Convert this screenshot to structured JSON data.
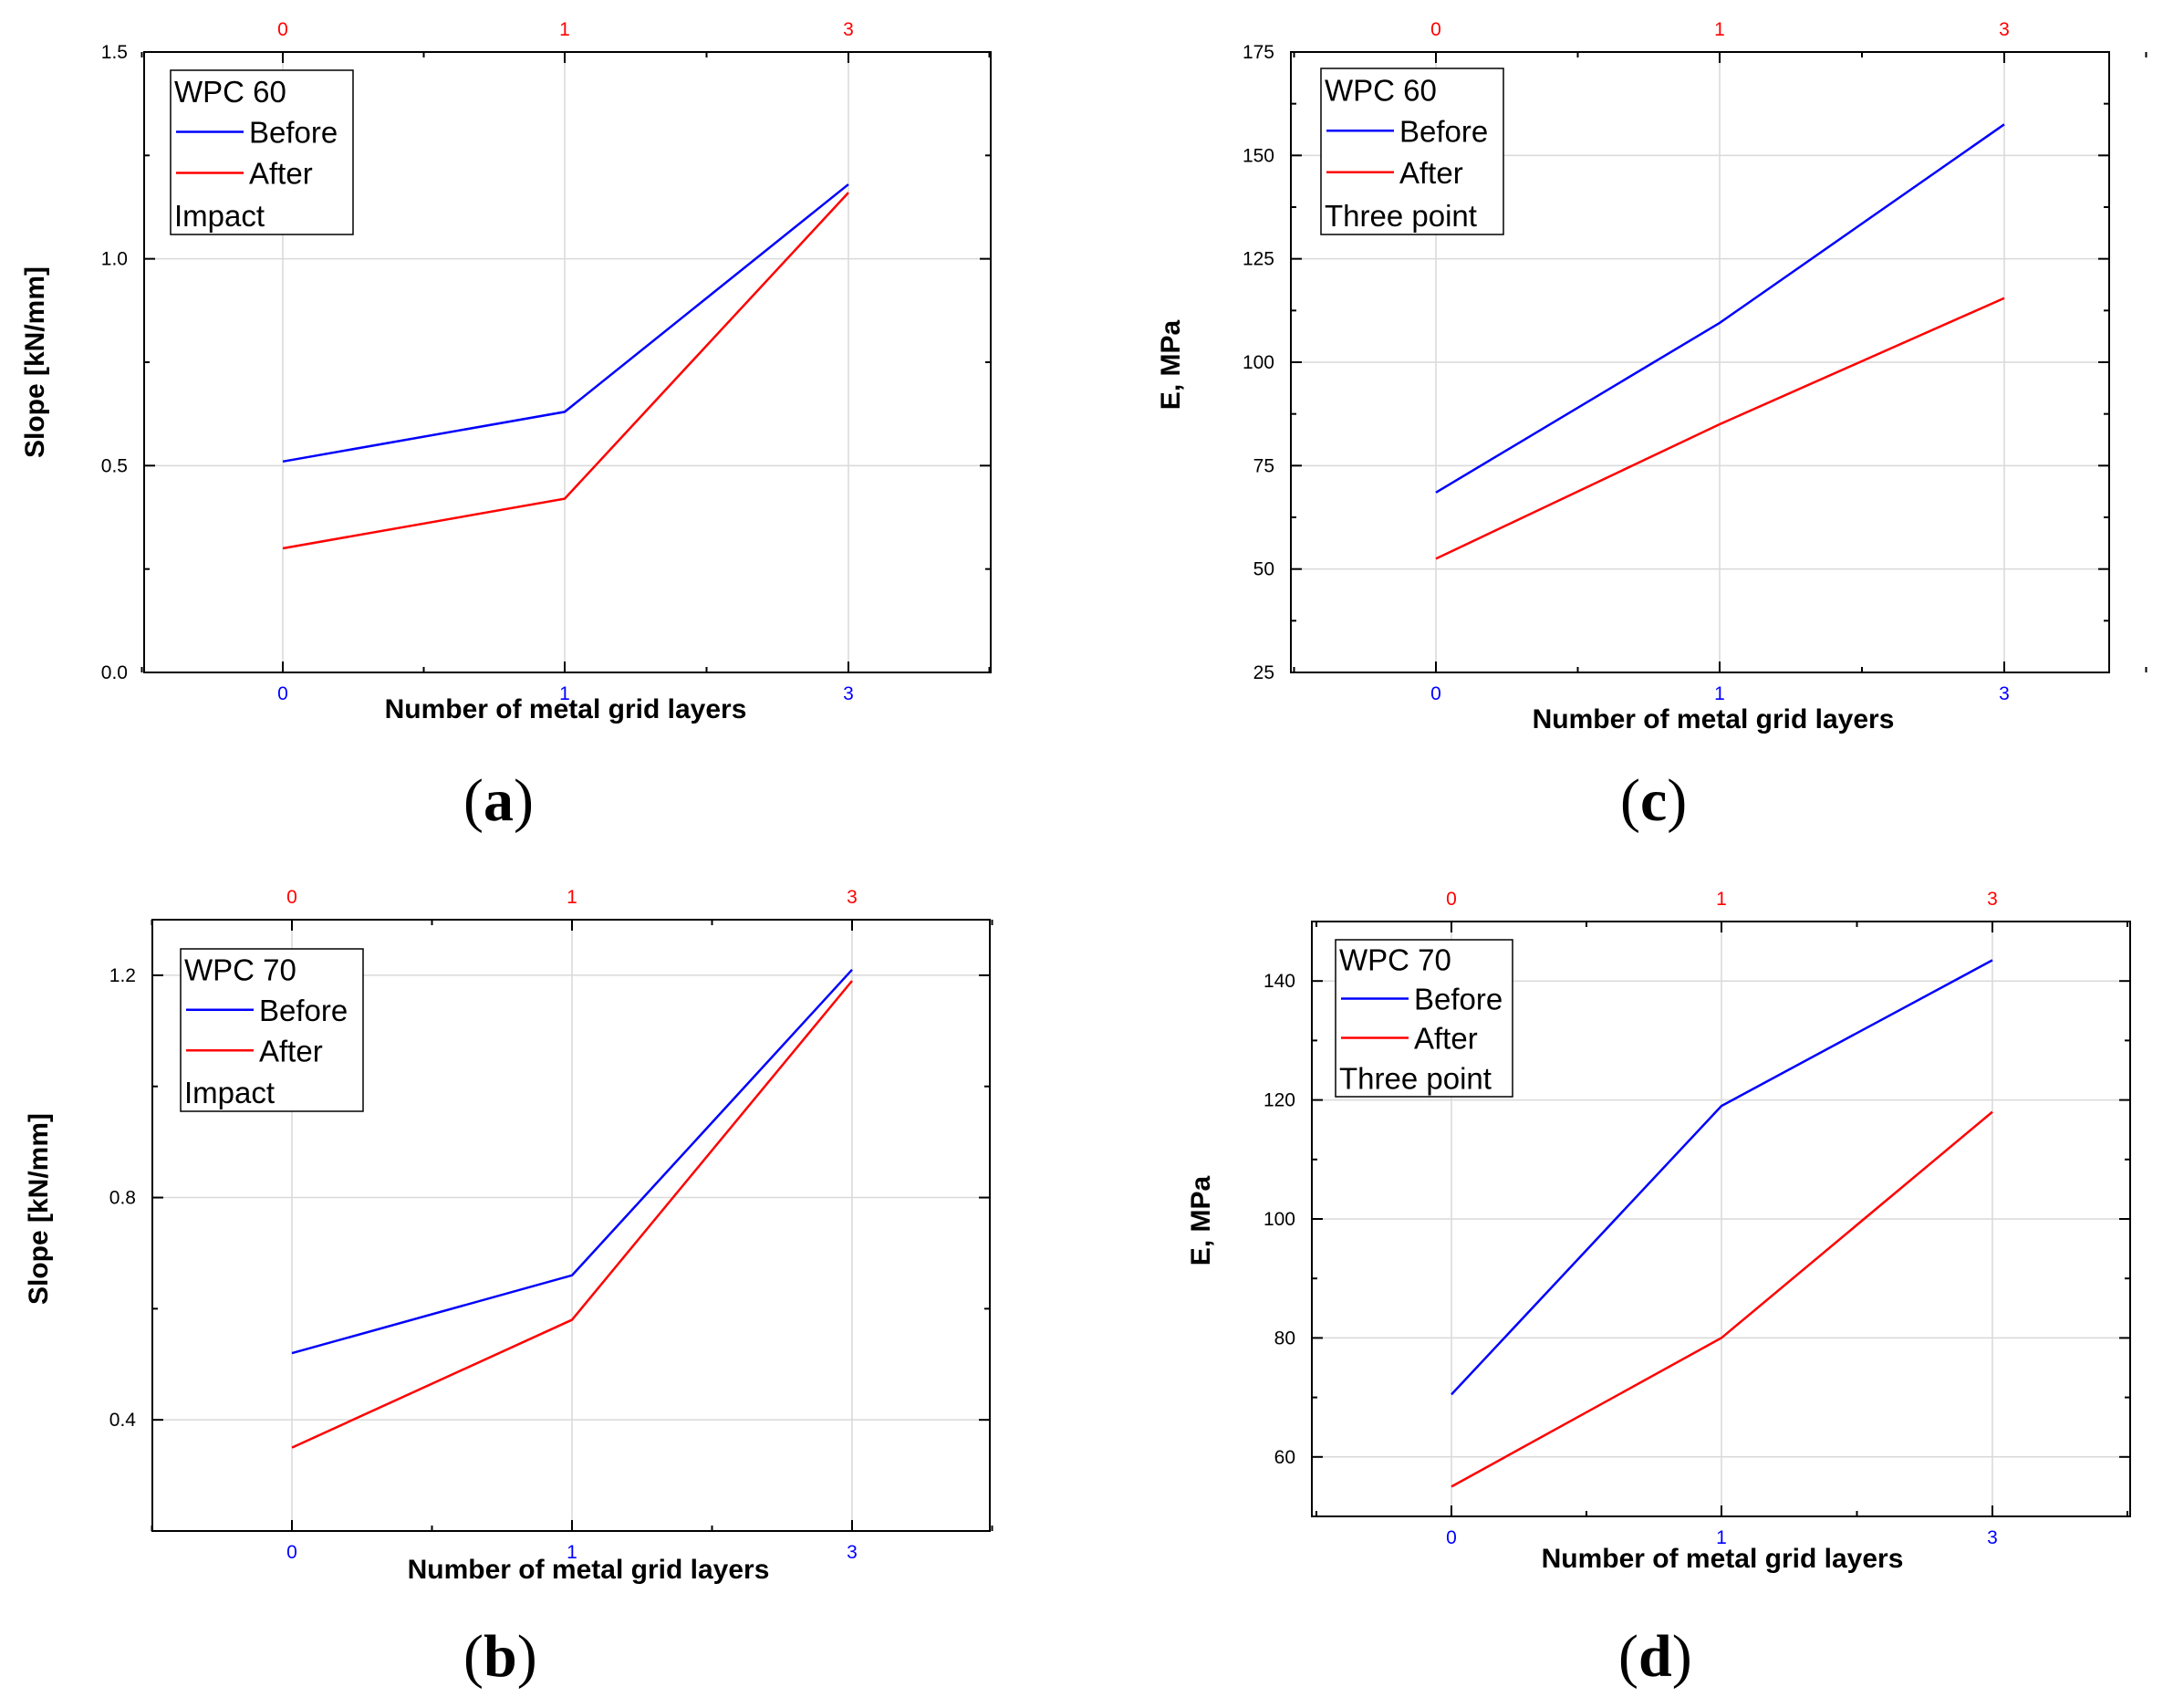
{
  "chart_data": [
    {
      "id": "a",
      "type": "line",
      "panel_label": "a",
      "xlabel": "Number of metal grid layers",
      "ylabel": "Slope [kN/mm]",
      "categories": [
        "0",
        "1",
        "3"
      ],
      "top_categories": [
        "0",
        "1",
        "3"
      ],
      "ylim": [
        0,
        1.5
      ],
      "yticks": [
        "0.0",
        "0.5",
        "1.0",
        "1.5"
      ],
      "ytick_values": [
        0,
        0.5,
        1.0,
        1.5
      ],
      "grid": true,
      "legend": {
        "title": "WPC 60",
        "note": "Impact",
        "placement": "top-left"
      },
      "series": [
        {
          "name": "Before",
          "color": "#0000ff",
          "values": [
            0.51,
            0.63,
            1.18
          ]
        },
        {
          "name": "After",
          "color": "#ff0000",
          "values": [
            0.3,
            0.42,
            1.16
          ]
        }
      ]
    },
    {
      "id": "b",
      "type": "line",
      "panel_label": "b",
      "xlabel": "Number of metal grid layers",
      "ylabel": "Slope [kN/mm]",
      "categories": [
        "0",
        "1",
        "3"
      ],
      "top_categories": [
        "0",
        "1",
        "3"
      ],
      "ylim": [
        0.2,
        1.3
      ],
      "yticks": [
        "0.4",
        "0.8",
        "1.2"
      ],
      "ytick_values": [
        0.4,
        0.8,
        1.2
      ],
      "grid": true,
      "legend": {
        "title": "WPC 70",
        "note": "Impact",
        "placement": "top-left"
      },
      "series": [
        {
          "name": "Before",
          "color": "#0000ff",
          "values": [
            0.52,
            0.66,
            1.21
          ]
        },
        {
          "name": "After",
          "color": "#ff0000",
          "values": [
            0.35,
            0.58,
            1.19
          ]
        }
      ]
    },
    {
      "id": "c",
      "type": "line",
      "panel_label": "c",
      "xlabel": "Number of metal grid layers",
      "ylabel": "E, MPa",
      "categories": [
        "0",
        "1",
        "3"
      ],
      "top_categories": [
        "0",
        "1",
        "3"
      ],
      "ylim": [
        25,
        175
      ],
      "yticks": [
        "25",
        "50",
        "75",
        "100",
        "125",
        "150",
        "175"
      ],
      "ytick_values": [
        25,
        50,
        75,
        100,
        125,
        150,
        175
      ],
      "grid": true,
      "legend": {
        "title": "WPC 60",
        "note": "Three point",
        "placement": "top-left"
      },
      "series": [
        {
          "name": "Before",
          "color": "#0000ff",
          "values": [
            68.5,
            109.5,
            157.5
          ]
        },
        {
          "name": "After",
          "color": "#ff0000",
          "values": [
            52.5,
            85,
            115.5
          ]
        }
      ]
    },
    {
      "id": "d",
      "type": "line",
      "panel_label": "d",
      "xlabel": "Number of metal grid layers",
      "ylabel": "E, MPa",
      "categories": [
        "0",
        "1",
        "3"
      ],
      "top_categories": [
        "0",
        "1",
        "3"
      ],
      "ylim": [
        50,
        150
      ],
      "yticks": [
        "60",
        "80",
        "100",
        "120",
        "140"
      ],
      "ytick_values": [
        60,
        80,
        100,
        120,
        140
      ],
      "grid": true,
      "legend": {
        "title": "WPC 70",
        "note": "Three point",
        "placement": "top-left"
      },
      "series": [
        {
          "name": "Before",
          "color": "#0000ff",
          "values": [
            70.5,
            119,
            143.5
          ]
        },
        {
          "name": "After",
          "color": "#ff0000",
          "values": [
            55,
            80,
            118
          ]
        }
      ]
    }
  ]
}
